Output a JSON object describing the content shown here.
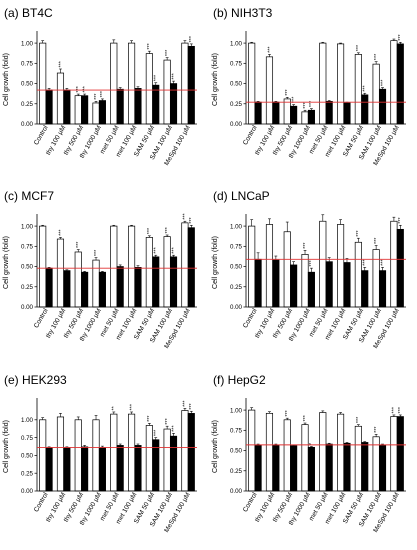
{
  "figure": {
    "panel_x_labels": [
      "Control",
      "thy 100 µM",
      "thy 500 µM",
      "thy 1000 µM",
      "met 50 µM",
      "met 100 µM",
      "SAM 50 µM",
      "SAM 100 µM",
      "MeSpd 100 µM"
    ]
  },
  "chart_data": [
    {
      "type": "bar",
      "title": "(a) BT4C",
      "ylabel": "Cell growth (fold)",
      "ylim": [
        0,
        1.1
      ],
      "yticks": [
        "0.00",
        "0.25",
        "0.50",
        "0.75",
        "1.00"
      ],
      "reference_line": 0.42,
      "reference_color": "#e03030",
      "categories": [
        "Control",
        "thy 100 µM",
        "thy 500 µM",
        "thy 1000 µM",
        "met 50 µM",
        "met 100 µM",
        "SAM 50 µM",
        "SAM 100 µM",
        "MeSpd 100 µM"
      ],
      "series": [
        {
          "fill": "#ffffff",
          "values": [
            1.0,
            0.63,
            0.35,
            0.26,
            1.0,
            1.0,
            0.87,
            0.79,
            1.0
          ],
          "errors": [
            0.03,
            0.05,
            0.02,
            0.02,
            0.04,
            0.03,
            0.03,
            0.03,
            0.03
          ],
          "sig": [
            "",
            "***",
            "***",
            "***",
            "",
            "",
            "***",
            "***",
            ""
          ]
        },
        {
          "fill": "#000000",
          "values": [
            0.42,
            0.42,
            0.35,
            0.29,
            0.43,
            0.44,
            0.48,
            0.5,
            0.96
          ],
          "errors": [
            0.02,
            0.02,
            0.02,
            0.02,
            0.02,
            0.02,
            0.03,
            0.03,
            0.03
          ],
          "sig": [
            "",
            "",
            "***",
            "***",
            "",
            "",
            "***",
            "***",
            "***"
          ]
        }
      ]
    },
    {
      "type": "bar",
      "title": "(b) NIH3T3",
      "ylabel": "Cell growth (fold)",
      "ylim": [
        0,
        1.1
      ],
      "yticks": [
        "0.00",
        "0.25",
        "0.50",
        "0.75",
        "1.00"
      ],
      "reference_line": 0.27,
      "reference_color": "#e03030",
      "categories": [
        "Control",
        "thy 100 µM",
        "thy 500 µM",
        "thy 1000 µM",
        "met 50 µM",
        "met 100 µM",
        "SAM 50 µM",
        "SAM 100 µM",
        "MeSpd 100 µM"
      ],
      "series": [
        {
          "fill": "#ffffff",
          "values": [
            1.0,
            0.83,
            0.31,
            0.15,
            1.0,
            0.99,
            0.86,
            0.74,
            1.03
          ],
          "errors": [
            0.01,
            0.03,
            0.02,
            0.02,
            0.01,
            0.01,
            0.02,
            0.03,
            0.02
          ],
          "sig": [
            "",
            "***",
            "***",
            "***",
            "",
            "",
            "***",
            "***",
            ""
          ]
        },
        {
          "fill": "#000000",
          "values": [
            0.27,
            0.27,
            0.22,
            0.17,
            0.28,
            0.26,
            0.36,
            0.43,
            0.99
          ],
          "errors": [
            0.01,
            0.01,
            0.02,
            0.02,
            0.01,
            0.01,
            0.02,
            0.02,
            0.02
          ],
          "sig": [
            "",
            "",
            "***",
            "***",
            "",
            "",
            "***",
            "***",
            "***"
          ]
        }
      ]
    },
    {
      "type": "bar",
      "title": "(c) MCF7",
      "ylabel": "Cell growth (fold)",
      "ylim": [
        0,
        1.1
      ],
      "yticks": [
        "0.00",
        "0.25",
        "0.50",
        "0.75",
        "1.00"
      ],
      "reference_line": 0.48,
      "reference_color": "#e03030",
      "categories": [
        "Control",
        "thy 100 µM",
        "thy 500 µM",
        "thy 1000 µM",
        "met 50 µM",
        "met 100 µM",
        "SAM 50 µM",
        "SAM 100 µM",
        "MeSpd 100 µM"
      ],
      "series": [
        {
          "fill": "#ffffff",
          "values": [
            1.0,
            0.84,
            0.68,
            0.58,
            1.0,
            1.0,
            0.86,
            0.87,
            1.04
          ],
          "errors": [
            0.01,
            0.02,
            0.03,
            0.03,
            0.01,
            0.01,
            0.02,
            0.02,
            0.02
          ],
          "sig": [
            "",
            "***",
            "***",
            "***",
            "",
            "",
            "***",
            "***",
            "***"
          ]
        },
        {
          "fill": "#000000",
          "values": [
            0.48,
            0.45,
            0.43,
            0.43,
            0.5,
            0.49,
            0.62,
            0.62,
            0.98
          ],
          "errors": [
            0.01,
            0.01,
            0.01,
            0.01,
            0.02,
            0.02,
            0.02,
            0.02,
            0.03
          ],
          "sig": [
            "",
            "",
            "",
            "",
            "",
            "",
            "***",
            "***",
            "***"
          ]
        }
      ]
    },
    {
      "type": "bar",
      "title": "(d) LNCaP",
      "ylabel": "Cell growth (fold)",
      "ylim": [
        0,
        1.1
      ],
      "yticks": [
        "0.00",
        "0.25",
        "0.50",
        "0.75",
        "1.00"
      ],
      "reference_line": 0.59,
      "reference_color": "#e03030",
      "categories": [
        "Control",
        "thy 100 µM",
        "thy 500 µM",
        "thy 1000 µM",
        "met 50 µM",
        "met 100 µM",
        "SAM 50 µM",
        "SAM 100 µM",
        "MeSpd 100 µM"
      ],
      "series": [
        {
          "fill": "#ffffff",
          "values": [
            1.0,
            1.02,
            0.93,
            0.65,
            1.06,
            1.02,
            0.8,
            0.71,
            1.06
          ],
          "errors": [
            0.08,
            0.07,
            0.12,
            0.05,
            0.08,
            0.06,
            0.05,
            0.05,
            0.05
          ],
          "sig": [
            "",
            "",
            "",
            "***",
            "",
            "",
            "***",
            "***",
            ""
          ]
        },
        {
          "fill": "#000000",
          "values": [
            0.59,
            0.58,
            0.52,
            0.43,
            0.56,
            0.55,
            0.45,
            0.45,
            0.96
          ],
          "errors": [
            0.08,
            0.05,
            0.04,
            0.05,
            0.05,
            0.05,
            0.04,
            0.04,
            0.05
          ],
          "sig": [
            "",
            "",
            "",
            "***",
            "",
            "",
            "***",
            "***",
            "***"
          ]
        }
      ]
    },
    {
      "type": "bar",
      "title": "(e) HEK293",
      "ylabel": "Cell growth (fold)",
      "ylim": [
        0,
        1.25
      ],
      "yticks": [
        "0.00",
        "0.25",
        "0.50",
        "0.75",
        "1.00"
      ],
      "reference_line": 0.61,
      "reference_color": "#e03030",
      "categories": [
        "Control",
        "thy 100 µM",
        "thy 500 µM",
        "thy 1000 µM",
        "met 50 µM",
        "met 100 µM",
        "SAM 50 µM",
        "SAM 100 µM",
        "MeSpd 100 µM"
      ],
      "series": [
        {
          "fill": "#ffffff",
          "values": [
            1.0,
            1.04,
            1.0,
            1.0,
            1.08,
            1.08,
            0.92,
            0.87,
            1.13
          ],
          "errors": [
            0.03,
            0.05,
            0.04,
            0.06,
            0.03,
            0.03,
            0.03,
            0.04,
            0.03
          ],
          "sig": [
            "",
            "",
            "",
            "",
            "**",
            "***",
            "***",
            "***",
            "***"
          ]
        },
        {
          "fill": "#000000",
          "values": [
            0.61,
            0.61,
            0.62,
            0.61,
            0.64,
            0.64,
            0.72,
            0.77,
            1.09
          ],
          "errors": [
            0.01,
            0.01,
            0.02,
            0.02,
            0.02,
            0.02,
            0.03,
            0.04,
            0.03
          ],
          "sig": [
            "",
            "",
            "",
            "",
            "",
            "",
            "***",
            "***",
            "***"
          ]
        }
      ]
    },
    {
      "type": "bar",
      "title": "(f) HepG2",
      "ylabel": "Cell growth (fold)",
      "ylim": [
        0,
        1.1
      ],
      "yticks": [
        "0.00",
        "0.25",
        "0.50",
        "0.75",
        "1.00"
      ],
      "reference_line": 0.57,
      "reference_color": "#e03030",
      "categories": [
        "Control",
        "thy 100 µM",
        "thy 500 µM",
        "thy 1000 µM",
        "met 50 µM",
        "met 100 µM",
        "SAM 50 µM",
        "SAM 100 µM",
        "MeSpd 100 µM"
      ],
      "series": [
        {
          "fill": "#ffffff",
          "values": [
            1.0,
            0.96,
            0.88,
            0.82,
            0.97,
            0.95,
            0.8,
            0.67,
            0.92
          ],
          "errors": [
            0.03,
            0.02,
            0.02,
            0.02,
            0.02,
            0.02,
            0.02,
            0.03,
            0.02
          ],
          "sig": [
            "",
            "",
            "***",
            "***",
            "",
            "",
            "***",
            "***",
            "***"
          ]
        },
        {
          "fill": "#000000",
          "values": [
            0.57,
            0.57,
            0.56,
            0.54,
            0.58,
            0.59,
            0.6,
            0.57,
            0.92
          ],
          "errors": [
            0.01,
            0.01,
            0.01,
            0.01,
            0.01,
            0.01,
            0.01,
            0.01,
            0.02
          ],
          "sig": [
            "",
            "",
            "",
            "*",
            "",
            "",
            "",
            "",
            "***"
          ]
        }
      ]
    }
  ]
}
